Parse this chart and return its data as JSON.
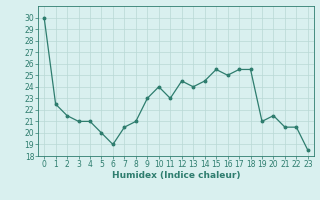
{
  "x": [
    0,
    1,
    2,
    3,
    4,
    5,
    6,
    7,
    8,
    9,
    10,
    11,
    12,
    13,
    14,
    15,
    16,
    17,
    18,
    19,
    20,
    21,
    22,
    23
  ],
  "y": [
    30,
    22.5,
    21.5,
    21.0,
    21.0,
    20.0,
    19.0,
    20.5,
    21.0,
    23.0,
    24.0,
    23.0,
    24.5,
    24.0,
    24.5,
    25.5,
    25.0,
    25.5,
    25.5,
    21.0,
    21.5,
    20.5,
    20.5,
    18.5
  ],
  "line_color": "#2e7d6e",
  "marker": "o",
  "marker_size": 1.8,
  "line_width": 0.9,
  "bg_color": "#d9f0ef",
  "grid_color": "#b8d8d5",
  "xlabel": "Humidex (Indice chaleur)",
  "xlabel_fontsize": 6.5,
  "ylim": [
    18,
    31
  ],
  "yticks": [
    18,
    19,
    20,
    21,
    22,
    23,
    24,
    25,
    26,
    27,
    28,
    29,
    30
  ],
  "xlim": [
    -0.5,
    23.5
  ],
  "xticks": [
    0,
    1,
    2,
    3,
    4,
    5,
    6,
    7,
    8,
    9,
    10,
    11,
    12,
    13,
    14,
    15,
    16,
    17,
    18,
    19,
    20,
    21,
    22,
    23
  ],
  "tick_fontsize": 5.5,
  "spine_color": "#2e7d6e",
  "text_color": "#2e7d6e"
}
